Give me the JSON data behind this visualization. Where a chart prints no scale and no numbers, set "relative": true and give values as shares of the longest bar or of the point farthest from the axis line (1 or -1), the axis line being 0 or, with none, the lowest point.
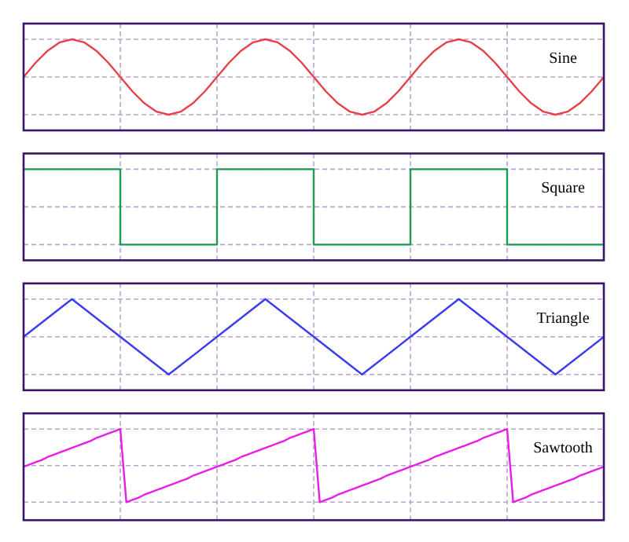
{
  "chart_data": [
    {
      "type": "line",
      "title": "Sine",
      "relative": true,
      "color": "#e8404a",
      "grid": true,
      "categories": [
        null,
        null,
        null,
        null,
        null,
        null,
        null,
        null,
        null,
        null,
        null,
        null,
        null,
        null,
        null,
        null,
        null,
        null,
        null,
        null,
        null,
        null,
        null,
        null,
        null,
        null,
        null,
        null,
        null,
        null,
        null,
        null,
        null,
        null,
        null,
        null,
        null,
        null,
        null,
        null,
        null,
        null,
        null,
        null,
        null,
        null,
        null,
        null,
        null
      ],
      "values": [
        0.5,
        0.69,
        0.85,
        0.96,
        1,
        0.96,
        0.85,
        0.69,
        0.5,
        0.31,
        0.15,
        0.04,
        0,
        0.04,
        0.15,
        0.31,
        0.5,
        0.69,
        0.85,
        0.96,
        1,
        0.96,
        0.85,
        0.69,
        0.5,
        0.31,
        0.15,
        0.04,
        0,
        0.04,
        0.15,
        0.31,
        0.5,
        0.69,
        0.85,
        0.96,
        1,
        0.96,
        0.85,
        0.69,
        0.5,
        0.31,
        0.15,
        0.04,
        0,
        0.04,
        0.15,
        0.31,
        0.5
      ]
    },
    {
      "type": "step",
      "title": "Square",
      "relative": true,
      "color": "#1f9a55",
      "grid": true,
      "categories": [
        null,
        null,
        null,
        null,
        null,
        null,
        null
      ],
      "values": [
        1,
        0,
        1,
        0,
        1,
        0,
        0
      ]
    },
    {
      "type": "line",
      "title": "Triangle",
      "relative": true,
      "color": "#3b3bf0",
      "grid": true,
      "categories": [
        null,
        null,
        null,
        null,
        null,
        null,
        null,
        null,
        null,
        null,
        null,
        null,
        null
      ],
      "values": [
        0.5,
        1,
        0.5,
        0,
        0.5,
        1,
        0.5,
        0,
        0.5,
        1,
        0.5,
        0,
        0.5
      ]
    },
    {
      "type": "line",
      "title": "Sawtooth",
      "relative": true,
      "color": "#e81ee8",
      "grid": true,
      "categories": [
        null,
        null,
        null,
        null,
        null,
        null,
        null,
        null,
        null,
        null,
        null,
        null,
        null,
        null,
        null,
        null,
        null,
        null,
        null,
        null,
        null,
        null,
        null,
        null,
        null,
        null,
        null,
        null,
        null,
        null,
        null,
        null,
        null,
        null,
        null,
        null,
        null,
        null,
        null,
        null,
        null,
        null,
        null,
        null,
        null,
        null,
        null,
        null,
        null,
        null,
        null,
        null,
        null,
        null,
        null,
        null,
        null,
        null,
        null,
        null,
        null,
        null,
        null,
        null,
        null,
        null,
        null,
        null,
        null,
        null,
        null,
        null,
        null,
        null,
        null,
        null,
        null,
        null,
        null,
        null,
        null,
        null,
        null,
        null,
        null,
        null,
        null,
        null,
        null,
        null,
        null,
        null,
        null,
        null,
        null,
        null,
        null
      ],
      "values": [
        0.5,
        0.53,
        0.56,
        0.59,
        0.63,
        0.66,
        0.69,
        0.72,
        0.75,
        0.78,
        0.81,
        0.84,
        0.88,
        0.91,
        0.94,
        0.97,
        1,
        0.03,
        0.06,
        0.09,
        0.13,
        0.16,
        0.19,
        0.22,
        0.25,
        0.28,
        0.31,
        0.34,
        0.38,
        0.41,
        0.44,
        0.47,
        0.5,
        0.53,
        0.56,
        0.59,
        0.63,
        0.66,
        0.69,
        0.72,
        0.75,
        0.78,
        0.81,
        0.84,
        0.88,
        0.91,
        0.94,
        0.97,
        1,
        0.03,
        0.06,
        0.09,
        0.13,
        0.16,
        0.19,
        0.22,
        0.25,
        0.28,
        0.31,
        0.34,
        0.38,
        0.41,
        0.44,
        0.47,
        0.5,
        0.53,
        0.56,
        0.59,
        0.63,
        0.66,
        0.69,
        0.72,
        0.75,
        0.78,
        0.81,
        0.84,
        0.88,
        0.91,
        0.94,
        0.97,
        1,
        0.03,
        0.06,
        0.09,
        0.13,
        0.16,
        0.19,
        0.22,
        0.25,
        0.28,
        0.31,
        0.34,
        0.38,
        0.41,
        0.44,
        0.47,
        0.5
      ]
    }
  ]
}
